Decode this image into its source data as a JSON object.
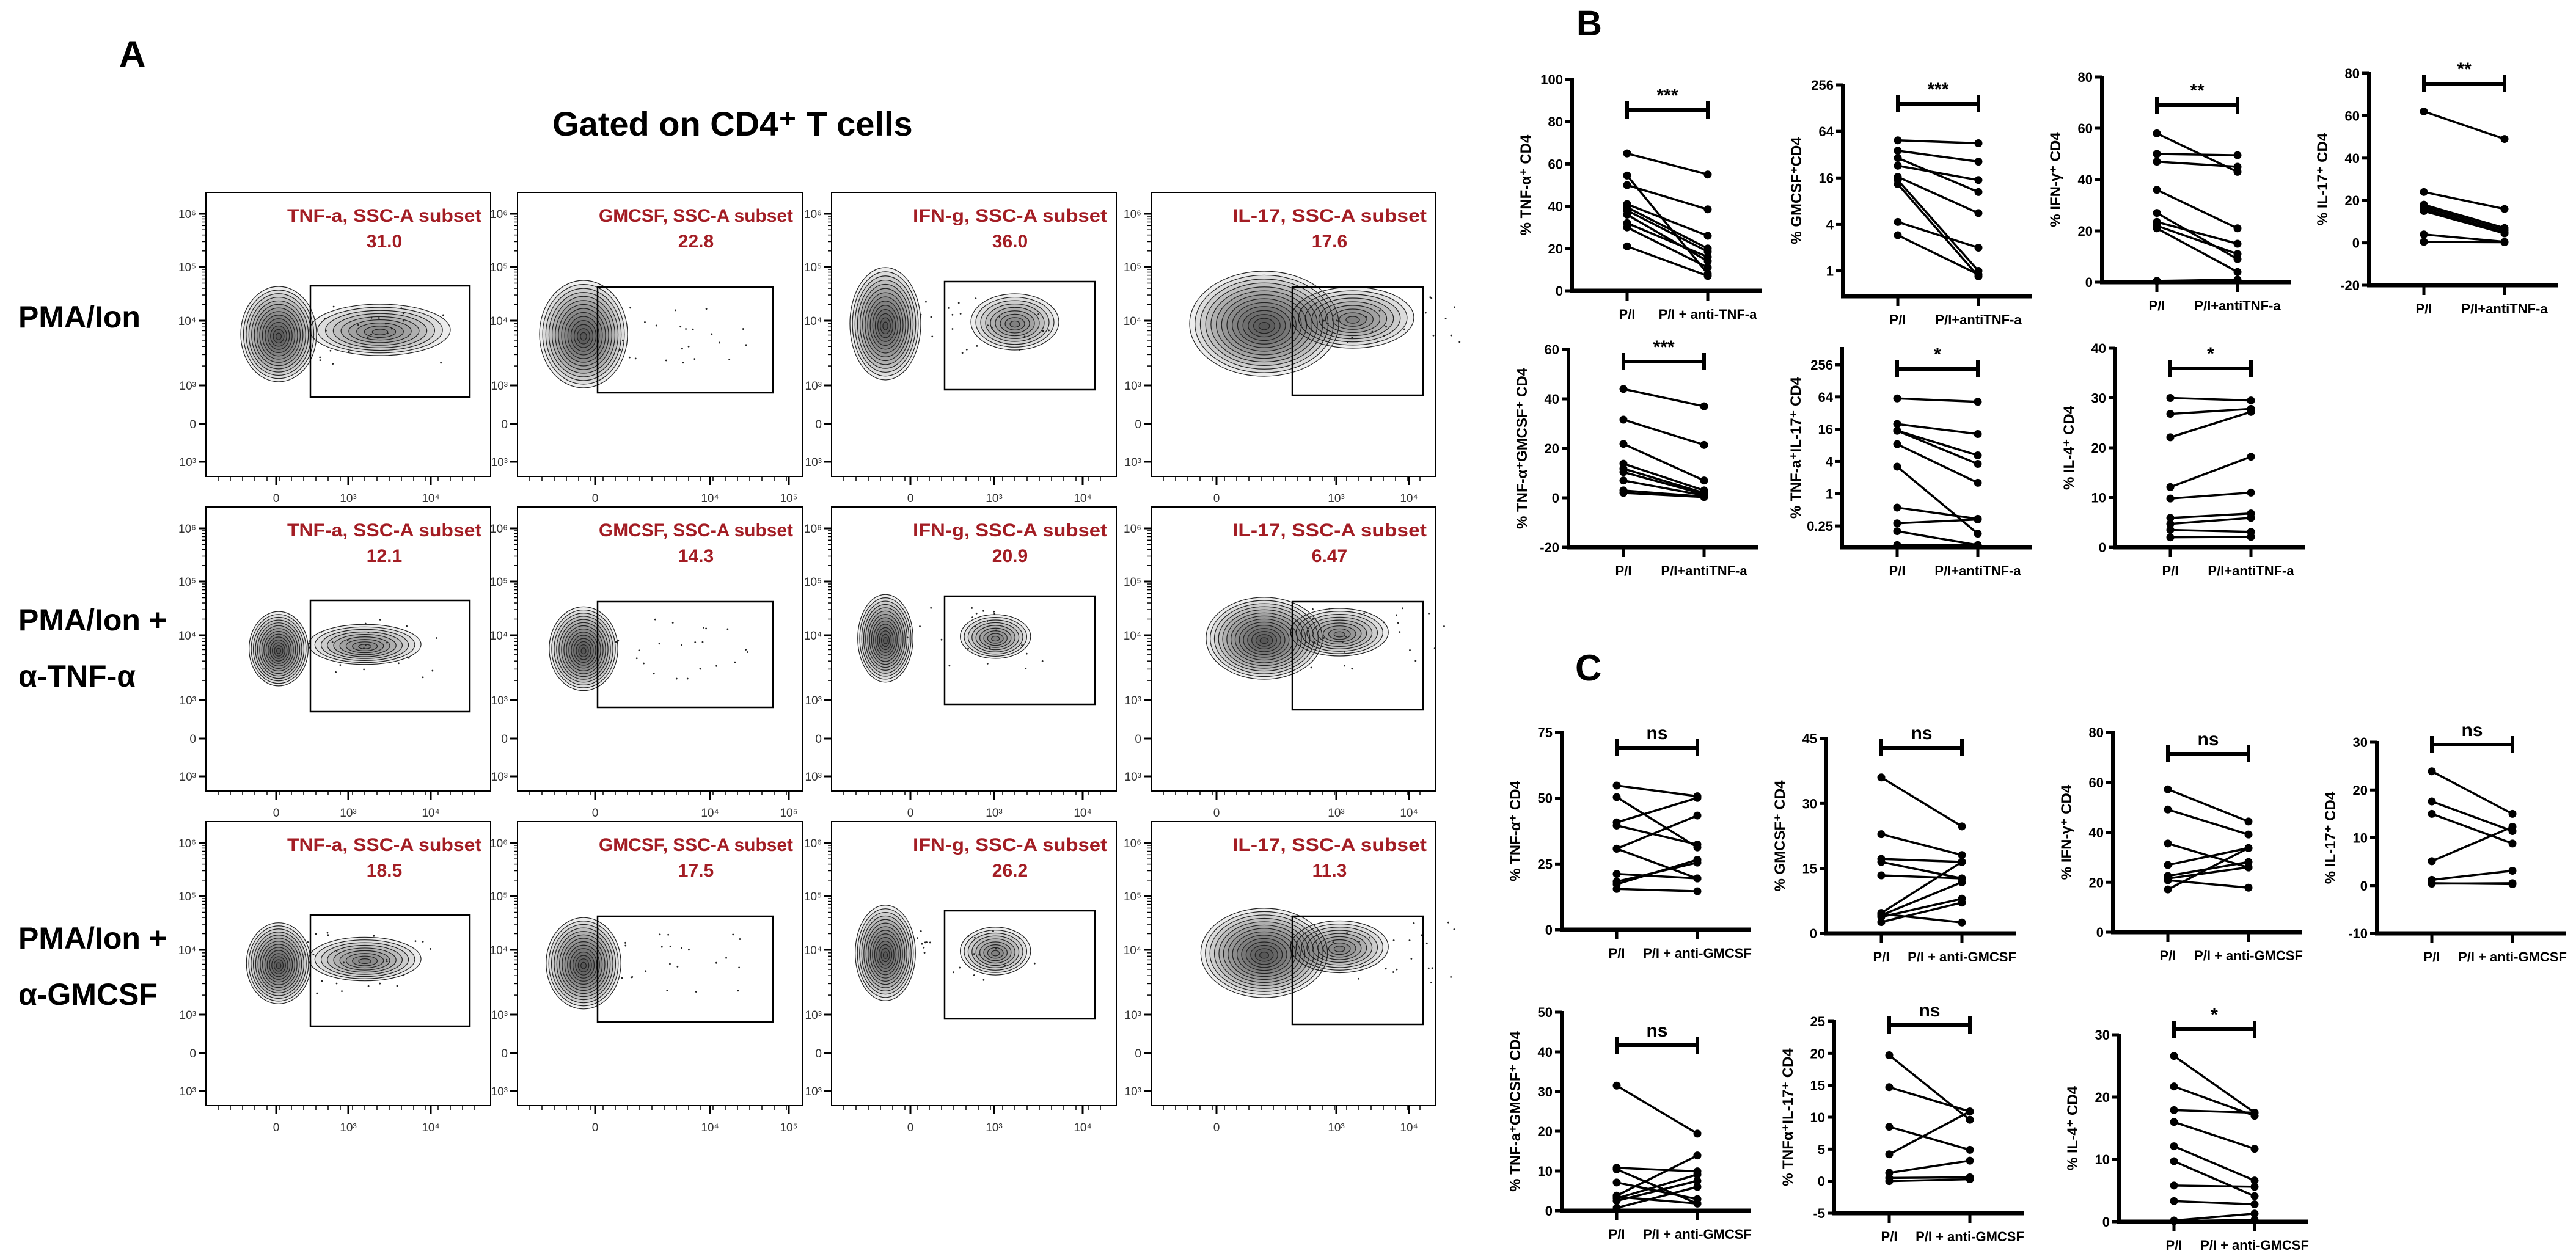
{
  "panel_a": {
    "label": "A",
    "title": "Gated on CD4⁺ T cells",
    "rows": [
      {
        "label_lines": [
          "PMA/Ion"
        ]
      },
      {
        "label_lines": [
          "PMA/Ion +",
          "α-TNF-α"
        ]
      },
      {
        "label_lines": [
          "PMA/Ion +",
          "α-GMCSF"
        ]
      }
    ],
    "columns": [
      {
        "gate": "TNF-a, SSC-A subset",
        "x_ticks": [
          "0",
          "10³",
          "10⁴"
        ]
      },
      {
        "gate": "GMCSF, SSC-A subset",
        "x_ticks": [
          "0",
          "10⁴",
          "10⁵"
        ]
      },
      {
        "gate": "IFN-g, SSC-A subset",
        "x_ticks": [
          "0",
          "10³",
          "10⁴"
        ]
      },
      {
        "gate": "IL-17, SSC-A subset",
        "x_ticks": [
          "0",
          "10³",
          "10⁴"
        ]
      }
    ],
    "y_ticks": [
      "10⁶",
      "10⁵",
      "10⁴",
      "10³",
      "0",
      "10³"
    ],
    "gate_values": [
      [
        "31.0",
        "22.8",
        "36.0",
        "17.6"
      ],
      [
        "12.1",
        "14.3",
        "20.9",
        "6.47"
      ],
      [
        "18.5",
        "17.5",
        "26.2",
        "11.3"
      ]
    ]
  },
  "panel_b": {
    "label": "B"
  },
  "panel_c": {
    "label": "C"
  },
  "colors": {
    "gate_text": "#a31d24",
    "ink": "#000000"
  },
  "chart_data": [
    {
      "id": "B1",
      "type": "line",
      "ylabel": "% TNF-α⁺ CD4",
      "categories": [
        "P/I",
        "P/I + anti-TNF-a"
      ],
      "yscale": "linear",
      "ylim": [
        0,
        100
      ],
      "yticks": [
        0,
        20,
        40,
        60,
        80,
        100
      ],
      "significance": "***",
      "before": [
        65,
        54.5,
        50,
        41,
        39.5,
        38,
        36,
        32,
        30,
        21
      ],
      "after": [
        55,
        8,
        38.5,
        26,
        20,
        18.5,
        14,
        16,
        11,
        7
      ]
    },
    {
      "id": "B2",
      "type": "line",
      "ylabel": "% GMCSF⁺CD4",
      "categories": [
        "P/I",
        "P/I+antiTNF-a"
      ],
      "yscale": "log2",
      "ylim": [
        0.47,
        256
      ],
      "yticks": [
        1,
        4,
        16,
        64,
        256
      ],
      "significance": "***",
      "before": [
        49,
        36,
        29,
        23,
        16.5,
        15,
        13.3,
        4.3,
        2.9
      ],
      "after": [
        45,
        26,
        10.5,
        15,
        5.6,
        1.0,
        0.85,
        2.0,
        0.9
      ]
    },
    {
      "id": "B3",
      "type": "line",
      "ylabel": "% IFN-γ⁺ CD4",
      "categories": [
        "P/I",
        "P/I+antiTNF-a"
      ],
      "yscale": "linear",
      "ylim": [
        0,
        80
      ],
      "yticks": [
        0,
        20,
        40,
        60,
        80
      ],
      "significance": "**",
      "before": [
        58,
        50,
        47,
        36,
        27,
        23.5,
        22,
        21,
        0.5
      ],
      "after": [
        43,
        49.5,
        45,
        21,
        9,
        15,
        11,
        4,
        1
      ]
    },
    {
      "id": "B4",
      "type": "line",
      "ylabel": "% IL-17⁺ CD4",
      "categories": [
        "P/I",
        "P/I+antiTNF-a"
      ],
      "yscale": "linear",
      "ylim": [
        -20,
        80
      ],
      "yticks": [
        -20,
        0,
        20,
        40,
        60,
        80
      ],
      "significance": "**",
      "before": [
        62,
        24,
        18,
        17,
        16,
        15,
        4,
        0.5
      ],
      "after": [
        49,
        16,
        7,
        6,
        5,
        4.5,
        0.5,
        0.3
      ]
    },
    {
      "id": "B5",
      "type": "line",
      "ylabel": "% TNF-α⁺GMCSF⁺ CD4",
      "categories": [
        "P/I",
        "P/I+antiTNF-a"
      ],
      "yscale": "linear",
      "ylim": [
        -20,
        60
      ],
      "yticks": [
        -20,
        0,
        20,
        40,
        60
      ],
      "significance": "***",
      "before": [
        44,
        31.6,
        21.8,
        13.8,
        11.8,
        10.4,
        7,
        3,
        2
      ],
      "after": [
        37,
        21.4,
        7,
        3,
        2,
        1.5,
        1,
        0.5,
        0.3
      ]
    },
    {
      "id": "B6",
      "type": "line",
      "ylabel": "% TNF-a⁺IL-17⁺ CD4",
      "categories": [
        "P/I",
        "P/I+antiTNF-a"
      ],
      "yscale": "log2",
      "ylim": [
        0.1,
        520
      ],
      "yticks": [
        0.25,
        1,
        4,
        16,
        64,
        256
      ],
      "significance": "*",
      "before": [
        60,
        20,
        15,
        15,
        8.4,
        3.2,
        0.55,
        0.28,
        0.2,
        0.11
      ],
      "after": [
        52,
        13,
        5.2,
        3.6,
        1.6,
        0.18,
        0.34,
        0.33,
        0.11,
        0.11
      ]
    },
    {
      "id": "B7",
      "type": "line",
      "ylabel": "% IL-4⁺ CD4",
      "categories": [
        "P/I",
        "P/I+antiTNF-a"
      ],
      "yscale": "linear",
      "ylim": [
        0,
        40
      ],
      "yticks": [
        0,
        10,
        20,
        30,
        40
      ],
      "significance": "*",
      "before": [
        30,
        26.8,
        22.1,
        12.1,
        9.8,
        5.9,
        4.7,
        3.5,
        2
      ],
      "after": [
        29.5,
        27.8,
        27.2,
        18.2,
        11,
        6.8,
        5.9,
        3.1,
        2.1
      ]
    },
    {
      "id": "C1",
      "type": "line",
      "ylabel": "% TNF-α⁺ CD4",
      "categories": [
        "P/I",
        "P/I + anti-GMCSF"
      ],
      "yscale": "linear",
      "ylim": [
        0,
        75
      ],
      "yticks": [
        0,
        25,
        50,
        75
      ],
      "significance": "ns",
      "before": [
        54.8,
        50.4,
        40.8,
        39.6,
        30.8,
        30.8,
        21.2,
        18.3,
        17.3,
        15.5
      ],
      "after": [
        50.7,
        31.3,
        50.1,
        32.4,
        43.4,
        19.5,
        19.5,
        25.5,
        26.6,
        14.6
      ]
    },
    {
      "id": "C2",
      "type": "line",
      "ylabel": "% GMCSF⁺ CD4",
      "categories": [
        "P/I",
        "P/I + anti-GMCSF"
      ],
      "yscale": "linear",
      "ylim": [
        0,
        45
      ],
      "yticks": [
        0,
        15,
        30,
        45
      ],
      "significance": "ns",
      "before": [
        36,
        22.9,
        17.2,
        16.5,
        13.4,
        4.7,
        4.2,
        3.8,
        2.6,
        4.5
      ],
      "after": [
        24.7,
        18.1,
        16.5,
        12.7,
        12.7,
        16.5,
        11.8,
        8,
        7.1,
        2.5
      ]
    },
    {
      "id": "C3",
      "type": "line",
      "ylabel": "% IFN-γ⁺ CD4",
      "categories": [
        "P/I",
        "P/I + anti-GMCSF"
      ],
      "yscale": "linear",
      "ylim": [
        0,
        80
      ],
      "yticks": [
        0,
        20,
        40,
        60,
        80
      ],
      "significance": "ns",
      "before": [
        57.2,
        49.1,
        35.5,
        26.9,
        22.5,
        20.8,
        17.1,
        21.5
      ],
      "after": [
        44.3,
        39.1,
        25.9,
        33.7,
        28.1,
        17.8,
        33.7,
        26
      ]
    },
    {
      "id": "C4",
      "type": "line",
      "ylabel": "% IL-17⁺ CD4",
      "categories": [
        "P/I",
        "P/I + anti-GMCSF"
      ],
      "yscale": "linear",
      "ylim": [
        -10,
        30
      ],
      "yticks": [
        -10,
        0,
        10,
        20,
        30
      ],
      "significance": "ns",
      "before": [
        23.9,
        17.6,
        15,
        5.1,
        1.2,
        0.4,
        0.5
      ],
      "after": [
        15,
        11.4,
        8.8,
        12.3,
        3.1,
        0.5,
        0.3
      ]
    },
    {
      "id": "C5",
      "type": "line",
      "ylabel": "% TNF-a⁺GMCSF⁺ CD4",
      "categories": [
        "P/I",
        "P/I + anti-GMCSF"
      ],
      "yscale": "linear",
      "ylim": [
        0,
        50
      ],
      "yticks": [
        0,
        10,
        20,
        30,
        40,
        50
      ],
      "significance": "ns",
      "before": [
        31.5,
        10.8,
        10.4,
        7.1,
        3.8,
        3.1,
        2.5,
        0.7,
        3.5
      ],
      "after": [
        19.4,
        9.9,
        1.8,
        2.9,
        13.9,
        9.1,
        7.5,
        6,
        1.8
      ]
    },
    {
      "id": "C6",
      "type": "line",
      "ylabel": "% TNFα⁺IL-17⁺ CD4",
      "categories": [
        "P/I",
        "P/I + anti-GMCSF"
      ],
      "yscale": "linear",
      "ylim": [
        -5,
        25
      ],
      "yticks": [
        -5,
        0,
        5,
        10,
        15,
        20,
        25
      ],
      "significance": "ns",
      "before": [
        19.7,
        14.7,
        8.5,
        4.2,
        1.3,
        0.5,
        0
      ],
      "after": [
        9.6,
        10.9,
        4.9,
        10.9,
        3.2,
        0.6,
        0.3
      ]
    },
    {
      "id": "C7",
      "type": "line",
      "ylabel": "% IL-4⁺ CD4",
      "categories": [
        "P/I",
        "P/I + anti-GMCSF"
      ],
      "yscale": "linear",
      "ylim": [
        0,
        30
      ],
      "yticks": [
        0,
        10,
        20,
        30
      ],
      "significance": "*",
      "before": [
        26.6,
        21.7,
        17.9,
        16,
        12.1,
        9.7,
        5.8,
        3.3,
        0.2,
        0.1
      ],
      "after": [
        17.5,
        17,
        17.5,
        11.7,
        6.6,
        4.1,
        5.6,
        2.8,
        1.3,
        0.3
      ]
    }
  ]
}
